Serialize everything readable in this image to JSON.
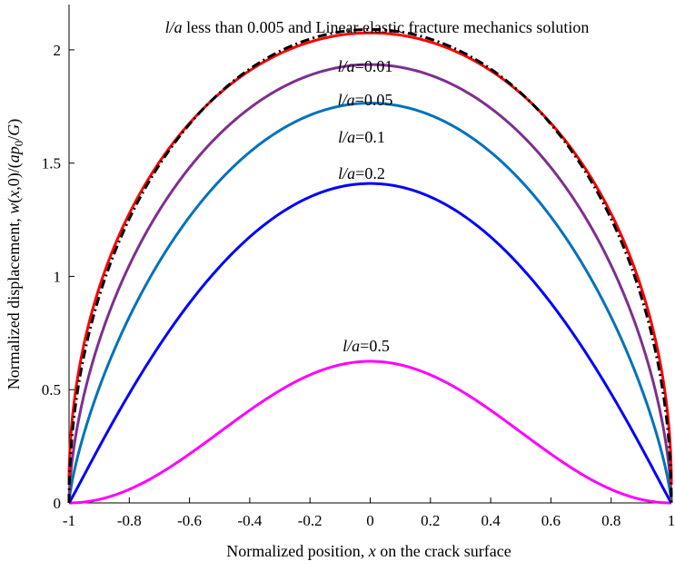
{
  "chart_data": {
    "type": "line",
    "xlabel": "Normalized position, x on the crack surface",
    "ylabel": "Normalized displacement, w(x,0)/(ap0/G)",
    "xlim": [
      -1,
      1
    ],
    "ylim": [
      0,
      2.2
    ],
    "xticks": [
      "-1",
      "-0.8",
      "-0.6",
      "-0.4",
      "-0.2",
      "0",
      "0.2",
      "0.4",
      "0.6",
      "0.8",
      "1"
    ],
    "yticks": [
      "0",
      "0.5",
      "1",
      "1.5",
      "2"
    ],
    "grid": false,
    "series": [
      {
        "name": "l/a less than 0.005 and Linear elastic fracture mechanics solution",
        "color": "#000000",
        "style": "dashdot",
        "shape": "ellipse",
        "peak": 2.09,
        "edge": 0.0
      },
      {
        "name": "l/a=0.01",
        "color": "#ff0000",
        "style": "solid",
        "shape": "ellipse",
        "peak": 2.075,
        "edge": 0.08
      },
      {
        "name": "l/a=0.05",
        "color": "#7e2f8e",
        "style": "solid",
        "shape": "power",
        "exponent": 0.6,
        "peak": 1.935,
        "edge": 0.0
      },
      {
        "name": "l/a=0.1",
        "color": "#0072bd",
        "style": "solid",
        "shape": "power",
        "exponent": 0.75,
        "peak": 1.765,
        "edge": 0.0
      },
      {
        "name": "l/a=0.2",
        "color": "#0000ff",
        "style": "solid",
        "shape": "power",
        "exponent": 1.05,
        "peak": 1.41,
        "edge": 0.0
      },
      {
        "name": "l/a=0.5",
        "color": "#ff00ff",
        "style": "solid",
        "shape": "cosine",
        "peak": 0.625,
        "edge": 0.0
      }
    ]
  },
  "annotations": [
    {
      "italic": "l/a",
      "rest": " less than 0.005 and Linear elastic fracture mechanics solution"
    },
    {
      "italic": "l/a",
      "rest": "=0.01"
    },
    {
      "italic": "l/a",
      "rest": "=0.05"
    },
    {
      "italic": "l/a",
      "rest": "=0.1"
    },
    {
      "italic": "l/a",
      "rest": "=0.2"
    },
    {
      "italic": "l/a",
      "rest": "=0.5"
    }
  ],
  "labels": {
    "x_pre": "Normalized position, ",
    "x_var": "x",
    "x_post": " on the crack surface",
    "y_pre": "Normalized displacement, ",
    "y_w": "w",
    "y_mid": "(",
    "y_x": "x",
    "y_zero": ",0)/(",
    "y_a": "ap",
    "y_sub": "0",
    "y_slash": "/",
    "y_G": "G",
    "y_close": ")"
  }
}
